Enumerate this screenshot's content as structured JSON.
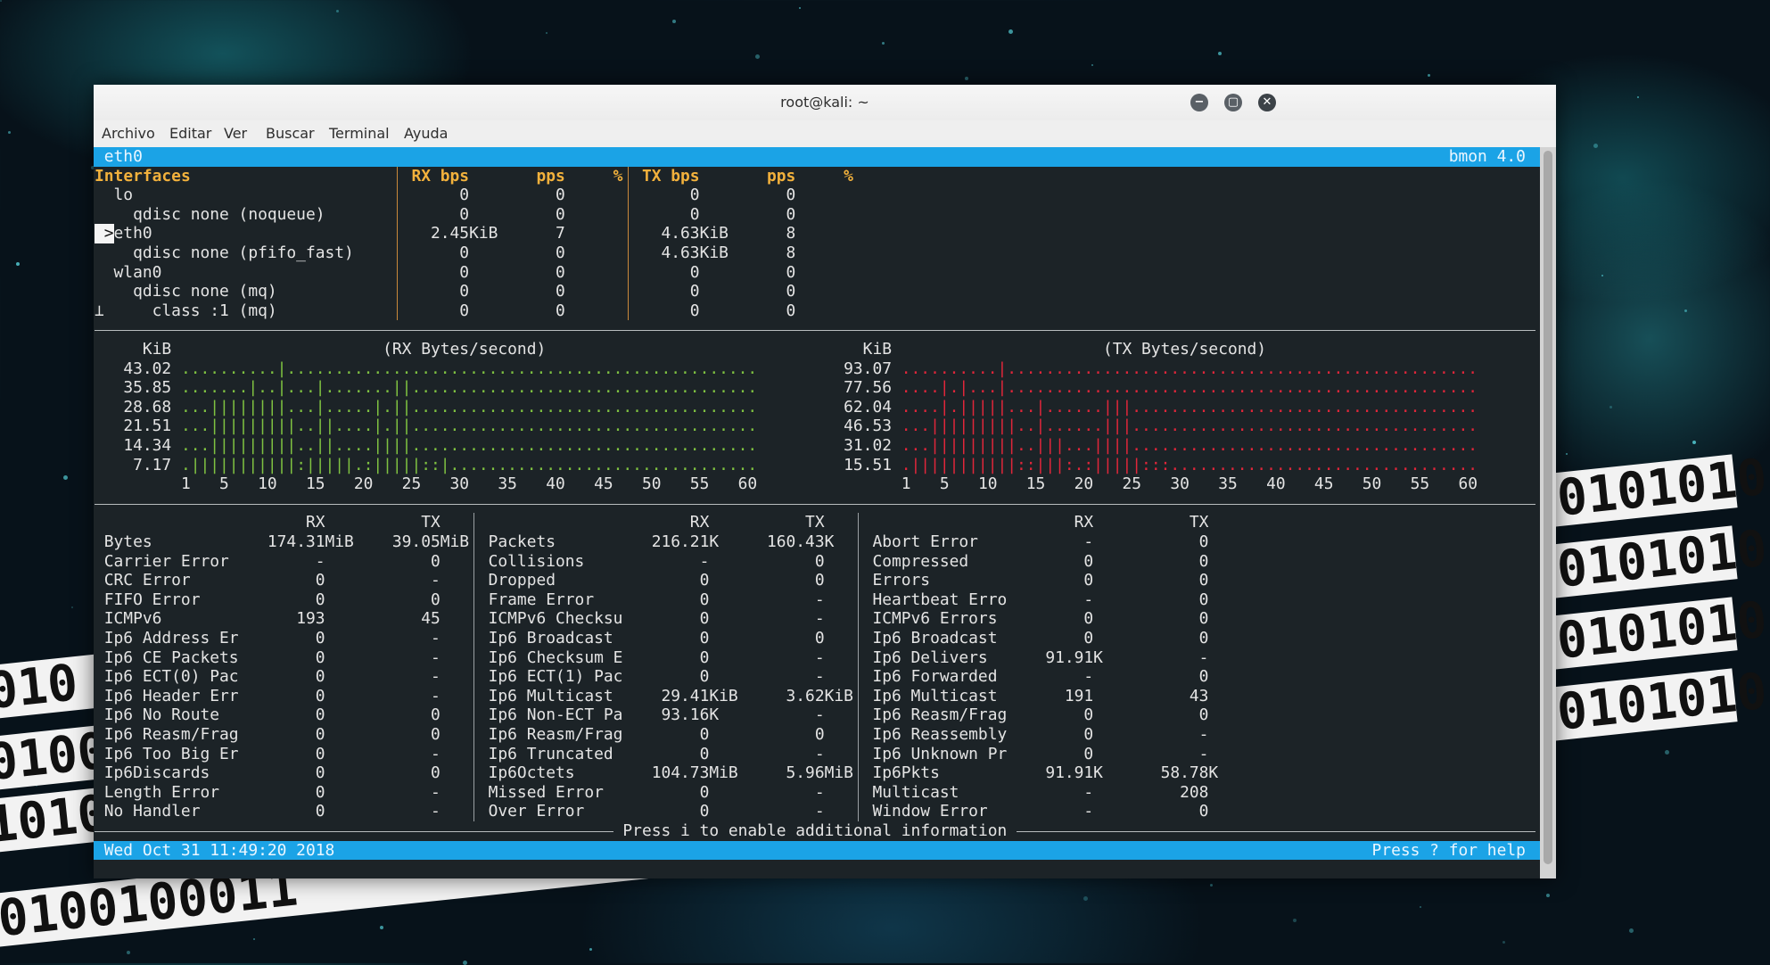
{
  "colors": {
    "accent_bar": "#1ba3e6",
    "header_text": "#f2b13c",
    "rx_graph": "#7fc241",
    "tx_graph": "#e0263a",
    "terminal_bg": "#1c2327"
  },
  "background": {
    "binary_strips": [
      "0101010",
      "0101010",
      "0101010",
      "0101010",
      "010",
      "0100",
      "1010",
      "0100100011"
    ]
  },
  "window": {
    "title": "root@kali: ~",
    "controls": [
      {
        "name": "minimize",
        "icon": "minus-circle-icon",
        "glyph": "−"
      },
      {
        "name": "maximize",
        "icon": "square-circle-icon",
        "glyph": "▢"
      },
      {
        "name": "close",
        "icon": "x-circle-icon",
        "glyph": "✕"
      }
    ],
    "menu": [
      "Archivo",
      "Editar",
      "Ver",
      "Buscar",
      "Terminal",
      "Ayuda"
    ]
  },
  "bmon": {
    "top_bar": {
      "interface": "eth0",
      "version": "bmon 4.0"
    },
    "table_headers": {
      "interfaces": "Interfaces",
      "rx_bps": "RX bps",
      "rx_pps": "pps",
      "rx_pct": "%",
      "tx_bps": "TX bps",
      "tx_pps": "pps",
      "tx_pct": "%"
    },
    "interfaces": [
      {
        "name": "lo",
        "indent": 2,
        "rx_bps": "0",
        "rx_pps": "0",
        "tx_bps": "0",
        "tx_pps": "0"
      },
      {
        "name": "qdisc none (noqueue)",
        "indent": 4,
        "rx_bps": "0",
        "rx_pps": "0",
        "tx_bps": "0",
        "tx_pps": "0"
      },
      {
        "name": "eth0",
        "indent": 2,
        "selected": true,
        "marker": ">",
        "rx_bps": "2.45KiB",
        "rx_pps": "7",
        "tx_bps": "4.63KiB",
        "tx_pps": "8"
      },
      {
        "name": "qdisc none (pfifo_fast)",
        "indent": 4,
        "rx_bps": "0",
        "rx_pps": "0",
        "tx_bps": "4.63KiB",
        "tx_pps": "8"
      },
      {
        "name": "wlan0",
        "indent": 2,
        "rx_bps": "0",
        "rx_pps": "0",
        "tx_bps": "0",
        "tx_pps": "0"
      },
      {
        "name": "qdisc none (mq)",
        "indent": 4,
        "rx_bps": "0",
        "rx_pps": "0",
        "tx_bps": "0",
        "tx_pps": "0"
      },
      {
        "name": "class :1 (mq)",
        "indent": 6,
        "tree_glyph": "⊥",
        "rx_bps": "0",
        "rx_pps": "0",
        "tx_bps": "0",
        "tx_pps": "0"
      }
    ],
    "graphs": [
      {
        "unit": "KiB",
        "title": "(RX Bytes/second)",
        "color": "rx",
        "y_labels": [
          "43.02",
          "35.85",
          "28.68",
          "21.51",
          "14.34",
          "7.17"
        ],
        "rows": [
          "..........|.................................................",
          ".......|..|...|.......||....................................",
          "...||||||||...|.....|.||....................................",
          "...|||||||||..||....|.||....................................",
          "...|||||||||..||....||||....................................",
          ".|||||||||||:|||||.:|||||::|................................"
        ],
        "x_ticks": [
          "1",
          "5",
          "10",
          "15",
          "20",
          "25",
          "30",
          "35",
          "40",
          "45",
          "50",
          "55",
          "60"
        ]
      },
      {
        "unit": "KiB",
        "title": "(TX Bytes/second)",
        "color": "tx",
        "y_labels": [
          "93.07",
          "77.56",
          "62.04",
          "46.53",
          "31.02",
          "15.51"
        ],
        "rows": [
          "..........|.................................................",
          "....|.|...|.................................................",
          "....|.|||||...|......|||....................................",
          "...|||||||||..|......|||....................................",
          "...|||||||||..|||...||||....................................",
          ".|||||||||||::|||:.:|||||:::................................"
        ],
        "x_ticks": [
          "1",
          "5",
          "10",
          "15",
          "20",
          "25",
          "30",
          "35",
          "40",
          "45",
          "50",
          "55",
          "60"
        ]
      }
    ],
    "stats_headers": {
      "rx": "RX",
      "tx": "TX"
    },
    "stats": [
      [
        [
          "Bytes",
          "174.31MiB",
          "39.05MiB"
        ],
        [
          "Carrier Error",
          "-",
          "0"
        ],
        [
          "CRC Error",
          "0",
          "-"
        ],
        [
          "FIFO Error",
          "0",
          "0"
        ],
        [
          "ICMPv6",
          "193",
          "45"
        ],
        [
          "Ip6 Address Er",
          "0",
          "-"
        ],
        [
          "Ip6 CE Packets",
          "0",
          "-"
        ],
        [
          "Ip6 ECT(0) Pac",
          "0",
          "-"
        ],
        [
          "Ip6 Header Err",
          "0",
          "-"
        ],
        [
          "Ip6 No Route",
          "0",
          "0"
        ],
        [
          "Ip6 Reasm/Frag",
          "0",
          "0"
        ],
        [
          "Ip6 Too Big Er",
          "0",
          "-"
        ],
        [
          "Ip6Discards",
          "0",
          "0"
        ],
        [
          "Length Error",
          "0",
          "-"
        ],
        [
          "No Handler",
          "0",
          "-"
        ]
      ],
      [
        [
          "Packets",
          "216.21K",
          "160.43K"
        ],
        [
          "Collisions",
          "-",
          "0"
        ],
        [
          "Dropped",
          "0",
          "0"
        ],
        [
          "Frame Error",
          "0",
          "-"
        ],
        [
          "ICMPv6 Checksu",
          "0",
          "-"
        ],
        [
          "Ip6 Broadcast",
          "0",
          "0"
        ],
        [
          "Ip6 Checksum E",
          "0",
          "-"
        ],
        [
          "Ip6 ECT(1) Pac",
          "0",
          "-"
        ],
        [
          "Ip6 Multicast",
          "29.41KiB",
          "3.62KiB"
        ],
        [
          "Ip6 Non-ECT Pa",
          "93.16K",
          "-"
        ],
        [
          "Ip6 Reasm/Frag",
          "0",
          "0"
        ],
        [
          "Ip6 Truncated",
          "0",
          "-"
        ],
        [
          "Ip6Octets",
          "104.73MiB",
          "5.96MiB"
        ],
        [
          "Missed Error",
          "0",
          "-"
        ],
        [
          "Over Error",
          "0",
          "-"
        ]
      ],
      [
        [
          "Abort Error",
          "-",
          "0"
        ],
        [
          "Compressed",
          "0",
          "0"
        ],
        [
          "Errors",
          "0",
          "0"
        ],
        [
          "Heartbeat Erro",
          "-",
          "0"
        ],
        [
          "ICMPv6 Errors",
          "0",
          "0"
        ],
        [
          "Ip6 Broadcast",
          "0",
          "0"
        ],
        [
          "Ip6 Delivers",
          "91.91K",
          "-"
        ],
        [
          "Ip6 Forwarded",
          "-",
          "0"
        ],
        [
          "Ip6 Multicast",
          "191",
          "43"
        ],
        [
          "Ip6 Reasm/Frag",
          "0",
          "0"
        ],
        [
          "Ip6 Reassembly",
          "0",
          "-"
        ],
        [
          "Ip6 Unknown Pr",
          "0",
          "-"
        ],
        [
          "Ip6Pkts",
          "91.91K",
          "58.78K"
        ],
        [
          "Multicast",
          "-",
          "208"
        ],
        [
          "Window Error",
          "-",
          "0"
        ]
      ]
    ],
    "info_hint": " Press i to enable additional information ",
    "status_bar": {
      "datetime": "Wed Oct 31 11:49:20 2018",
      "help": "Press ? for help"
    }
  }
}
